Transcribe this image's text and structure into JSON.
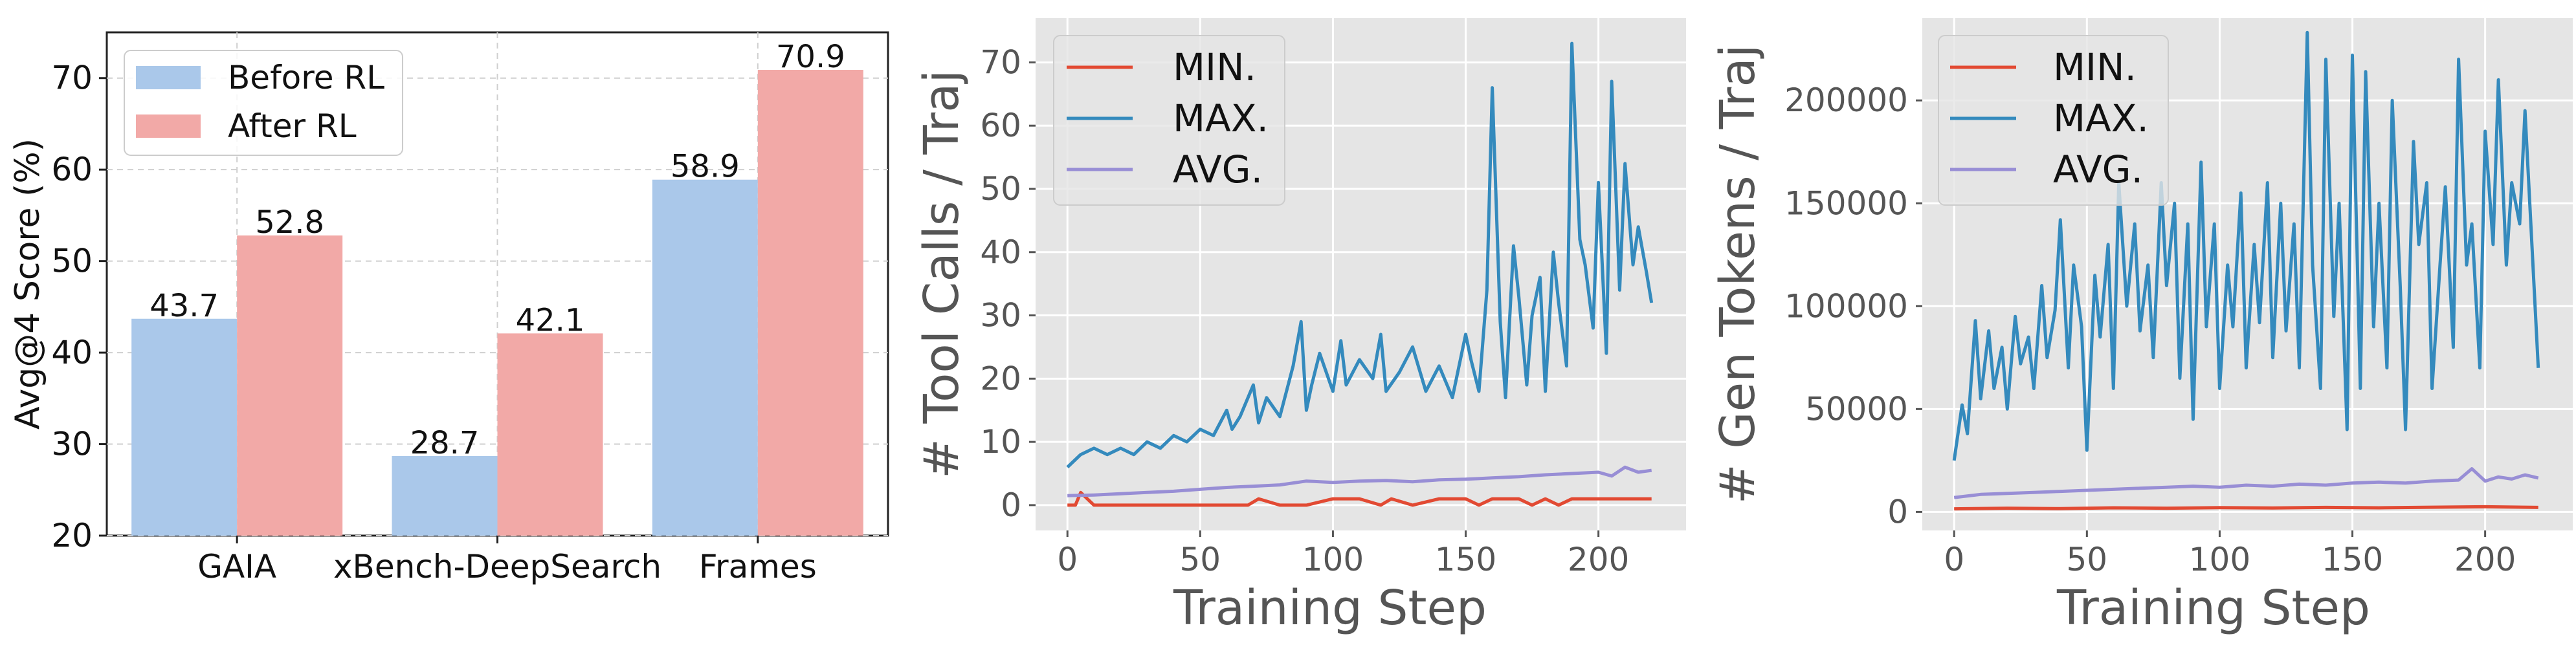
{
  "chart_data": [
    {
      "type": "bar",
      "ylabel": "Avg@4 Score (%)",
      "xlabel": "",
      "ylim": [
        20,
        75
      ],
      "yticks": [
        20,
        30,
        40,
        50,
        60,
        70
      ],
      "categories": [
        "GAIA",
        "xBench-DeepSearch",
        "Frames"
      ],
      "series": [
        {
          "name": "Before RL",
          "values": [
            43.7,
            28.7,
            58.9
          ],
          "color": "#aac8ea"
        },
        {
          "name": "After RL",
          "values": [
            52.8,
            42.1,
            70.9
          ],
          "color": "#f2a9a7"
        }
      ],
      "data_labels": [
        [
          "43.7",
          "28.7",
          "58.9"
        ],
        [
          "52.8",
          "42.1",
          "70.9"
        ]
      ],
      "grid": true,
      "legend": "top-left"
    },
    {
      "type": "line",
      "xlabel": "Training Step",
      "ylabel": "# Tool Calls / Traj",
      "xlim": [
        -12,
        233
      ],
      "ylim": [
        -4,
        77
      ],
      "xticks": [
        0,
        50,
        100,
        150,
        200
      ],
      "yticks": [
        0,
        10,
        20,
        30,
        40,
        50,
        60,
        70
      ],
      "grid": true,
      "legend": "top-left",
      "series": [
        {
          "name": "MIN.",
          "color": "#e24a33",
          "x": [
            0,
            3,
            5,
            10,
            20,
            40,
            60,
            68,
            72,
            80,
            90,
            100,
            110,
            118,
            122,
            130,
            140,
            150,
            155,
            160,
            170,
            175,
            180,
            185,
            190,
            200,
            210,
            220
          ],
          "y": [
            0,
            0,
            2,
            0,
            0,
            0,
            0,
            0,
            1,
            0,
            0,
            1,
            1,
            0,
            1,
            0,
            1,
            1,
            0,
            1,
            1,
            0,
            1,
            0,
            1,
            1,
            1,
            1
          ]
        },
        {
          "name": "MAX.",
          "color": "#348abd",
          "x": [
            0,
            5,
            10,
            15,
            20,
            25,
            30,
            35,
            40,
            45,
            50,
            55,
            60,
            62,
            65,
            70,
            72,
            75,
            80,
            85,
            88,
            90,
            92,
            95,
            100,
            103,
            105,
            110,
            115,
            118,
            120,
            125,
            130,
            135,
            140,
            145,
            150,
            152,
            155,
            158,
            160,
            163,
            165,
            168,
            170,
            173,
            175,
            178,
            180,
            183,
            185,
            188,
            190,
            193,
            195,
            198,
            200,
            203,
            205,
            208,
            210,
            213,
            215,
            218,
            220
          ],
          "y": [
            6,
            8,
            9,
            8,
            9,
            8,
            10,
            9,
            11,
            10,
            12,
            11,
            15,
            12,
            14,
            19,
            13,
            17,
            14,
            22,
            29,
            15,
            19,
            24,
            18,
            26,
            19,
            23,
            20,
            27,
            18,
            21,
            25,
            18,
            22,
            17,
            27,
            23,
            18,
            34,
            66,
            29,
            17,
            41,
            33,
            19,
            30,
            36,
            18,
            40,
            32,
            22,
            73,
            42,
            38,
            28,
            51,
            24,
            67,
            34,
            54,
            38,
            44,
            37,
            32
          ]
        },
        {
          "name": "AVG.",
          "color": "#988ed5",
          "x": [
            0,
            10,
            20,
            30,
            40,
            50,
            60,
            70,
            80,
            90,
            100,
            110,
            120,
            130,
            140,
            150,
            160,
            170,
            180,
            190,
            200,
            205,
            210,
            215,
            220
          ],
          "y": [
            1.5,
            1.6,
            1.8,
            2.0,
            2.2,
            2.5,
            2.8,
            3.0,
            3.2,
            3.8,
            3.6,
            3.8,
            3.9,
            3.7,
            4.0,
            4.1,
            4.3,
            4.5,
            4.8,
            5.0,
            5.2,
            4.6,
            6.0,
            5.2,
            5.5
          ]
        }
      ]
    },
    {
      "type": "line",
      "xlabel": "Training Step",
      "ylabel": "# Gen Tokens / Traj",
      "xlim": [
        -12,
        233
      ],
      "ylim": [
        -9000,
        240000
      ],
      "xticks": [
        0,
        50,
        100,
        150,
        200
      ],
      "yticks": [
        0,
        50000,
        100000,
        150000,
        200000
      ],
      "grid": true,
      "legend": "top-left",
      "series": [
        {
          "name": "MIN.",
          "color": "#e24a33",
          "x": [
            0,
            20,
            40,
            60,
            80,
            100,
            120,
            140,
            160,
            180,
            200,
            220
          ],
          "y": [
            1500,
            1800,
            1600,
            2000,
            1800,
            2100,
            1900,
            2200,
            2000,
            2300,
            2500,
            2200
          ]
        },
        {
          "name": "MAX.",
          "color": "#348abd",
          "x": [
            0,
            3,
            5,
            8,
            10,
            13,
            15,
            18,
            20,
            23,
            25,
            28,
            30,
            33,
            35,
            38,
            40,
            43,
            45,
            48,
            50,
            53,
            55,
            58,
            60,
            62,
            65,
            68,
            70,
            73,
            75,
            78,
            80,
            83,
            85,
            88,
            90,
            93,
            95,
            98,
            100,
            103,
            105,
            108,
            110,
            113,
            115,
            118,
            120,
            123,
            125,
            128,
            130,
            133,
            135,
            138,
            140,
            143,
            145,
            148,
            150,
            153,
            155,
            158,
            160,
            163,
            165,
            168,
            170,
            173,
            175,
            178,
            180,
            183,
            185,
            188,
            190,
            193,
            195,
            198,
            200,
            203,
            205,
            208,
            210,
            213,
            215,
            218,
            220
          ],
          "y": [
            25000,
            52000,
            38000,
            93000,
            55000,
            88000,
            60000,
            80000,
            50000,
            95000,
            72000,
            85000,
            60000,
            110000,
            75000,
            98000,
            142000,
            70000,
            120000,
            90000,
            30000,
            115000,
            85000,
            130000,
            60000,
            160000,
            100000,
            140000,
            88000,
            120000,
            75000,
            160000,
            110000,
            150000,
            65000,
            140000,
            45000,
            170000,
            90000,
            140000,
            60000,
            120000,
            90000,
            155000,
            70000,
            130000,
            92000,
            160000,
            75000,
            150000,
            88000,
            140000,
            70000,
            233000,
            120000,
            60000,
            220000,
            95000,
            150000,
            40000,
            222000,
            60000,
            214000,
            90000,
            150000,
            70000,
            200000,
            110000,
            40000,
            180000,
            130000,
            160000,
            60000,
            120000,
            158000,
            80000,
            220000,
            120000,
            140000,
            70000,
            185000,
            130000,
            210000,
            120000,
            160000,
            140000,
            195000,
            120000,
            70000
          ]
        },
        {
          "name": "AVG.",
          "color": "#988ed5",
          "x": [
            0,
            10,
            20,
            30,
            40,
            50,
            60,
            70,
            80,
            90,
            100,
            110,
            120,
            130,
            140,
            150,
            160,
            170,
            180,
            190,
            195,
            200,
            205,
            210,
            215,
            220
          ],
          "y": [
            7000,
            8500,
            9000,
            9500,
            10000,
            10500,
            11000,
            11500,
            12000,
            12500,
            12000,
            13000,
            12500,
            13500,
            13000,
            14000,
            14500,
            14000,
            15000,
            15500,
            21000,
            15000,
            17000,
            16000,
            18000,
            16500
          ]
        }
      ]
    }
  ]
}
